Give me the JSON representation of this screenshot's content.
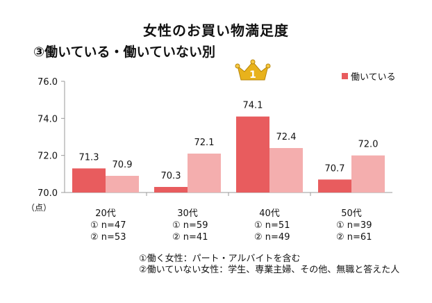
{
  "title": "女性のお買い物満足度",
  "subtitle": "③働いている・働いていない別",
  "legend": {
    "label": "働いている",
    "color": "#e85c5e"
  },
  "unit_label": "（点）",
  "footnotes": [
    "①働く女性：パート・アルバイトを含む",
    "②働いていない女性：学生、専業主婦、その他、無職と答えた人"
  ],
  "chart_data": {
    "type": "bar",
    "categories": [
      "20代",
      "30代",
      "40代",
      "50代"
    ],
    "sample_sizes": [
      [
        "① n=47",
        "② n=53"
      ],
      [
        "① n=59",
        "② n=41"
      ],
      [
        "① n=51",
        "② n=49"
      ],
      [
        "① n=39",
        "② n=61"
      ]
    ],
    "series": [
      {
        "name": "働いている",
        "values": [
          71.3,
          70.3,
          74.1,
          70.7
        ],
        "color": "#e85c5e"
      },
      {
        "values": [
          70.9,
          72.1,
          72.4,
          72.0
        ],
        "color": "#f4aeae"
      }
    ],
    "value_labels": [
      [
        "71.3",
        "70.3",
        "74.1",
        "70.7"
      ],
      [
        "70.9",
        "72.1",
        "72.4",
        "72.0"
      ]
    ],
    "yticks": [
      "70.0",
      "72.0",
      "74.0",
      "76.0"
    ],
    "ylim": [
      70,
      76
    ],
    "highlight_icon": "crown-icon",
    "highlight_index": 2,
    "highlight_text": "1"
  }
}
